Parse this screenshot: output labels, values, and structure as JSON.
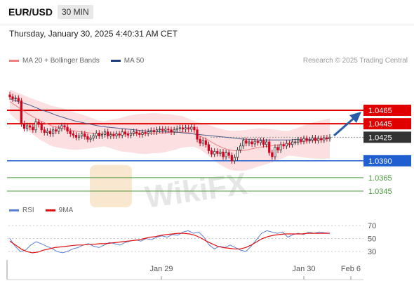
{
  "header": {
    "pair": "EUR/USD",
    "timeframe": "30 MIN",
    "datetime": "Thursday, January 30, 2025 4:40:31 AM CET"
  },
  "legend_main": [
    {
      "label": "MA 20 + Bollinger Bands",
      "color": "#f08080"
    },
    {
      "label": "MA 50",
      "color": "#1f3d7a"
    }
  ],
  "legend_rsi": [
    {
      "label": "RSI",
      "color": "#5b7fd4"
    },
    {
      "label": "9MA",
      "color": "#e01010"
    }
  ],
  "credit": "Research © 2025 Trading Central",
  "colors": {
    "resistance": "#e00000",
    "support": "#1f5fd0",
    "target": "#4a9a3a",
    "current": "#333333",
    "arrow": "#2a5da8",
    "candle_up": "#333333",
    "candle_down": "#d4001c"
  },
  "chart_data": {
    "type": "candlestick",
    "price_levels": [
      {
        "value": 1.0465,
        "label": "1.0465",
        "kind": "resistance"
      },
      {
        "value": 1.0445,
        "label": "1.0445",
        "kind": "resistance"
      },
      {
        "value": 1.0425,
        "label": "1.0425",
        "kind": "current"
      },
      {
        "value": 1.039,
        "label": "1.0390",
        "kind": "support"
      },
      {
        "value": 1.0365,
        "label": "1.0365",
        "kind": "target"
      },
      {
        "value": 1.0345,
        "label": "1.0345",
        "kind": "target"
      }
    ],
    "closes": [
      1.0485,
      1.0482,
      1.0483,
      1.0479,
      1.0445,
      1.0438,
      1.0442,
      1.044,
      1.0436,
      1.0448,
      1.0444,
      1.0436,
      1.0432,
      1.0434,
      1.043,
      1.0436,
      1.0434,
      1.0438,
      1.0442,
      1.044,
      1.0434,
      1.043,
      1.0428,
      1.0425,
      1.0427,
      1.043,
      1.0426,
      1.0422,
      1.0424,
      1.0427,
      1.0431,
      1.0427,
      1.0429,
      1.0433,
      1.0427,
      1.0429,
      1.0427,
      1.043,
      1.0428,
      1.0433,
      1.043,
      1.0428,
      1.0431,
      1.0433,
      1.0431,
      1.0429,
      1.0432,
      1.0431,
      1.0433,
      1.0435,
      1.0433,
      1.0436,
      1.0437,
      1.0435,
      1.0437,
      1.0436,
      1.0433,
      1.0436,
      1.0438,
      1.0439,
      1.0437,
      1.0439,
      1.0437,
      1.044,
      1.0436,
      1.0422,
      1.0416,
      1.042,
      1.0414,
      1.0405,
      1.04,
      1.0404,
      1.0401,
      1.0403,
      1.0396,
      1.0402,
      1.0398,
      1.039,
      1.0395,
      1.0406,
      1.0412,
      1.042,
      1.0416,
      1.0418,
      1.0415,
      1.0419,
      1.0417,
      1.042,
      1.0414,
      1.0418,
      1.0402,
      1.0396,
      1.041,
      1.0406,
      1.0414,
      1.0412,
      1.0416,
      1.0414,
      1.0418,
      1.0418,
      1.0421,
      1.0419,
      1.0423,
      1.042,
      1.0421,
      1.0424,
      1.042,
      1.0423,
      1.0421,
      1.0424,
      1.0423,
      1.0425
    ],
    "ma20": [
      1.0478,
      1.0472,
      1.0466,
      1.046,
      1.0455,
      1.045,
      1.0446,
      1.0442,
      1.044,
      1.0438,
      1.0436,
      1.0434,
      1.0433,
      1.0432,
      1.0431,
      1.043,
      1.043,
      1.043,
      1.0429,
      1.0429,
      1.043,
      1.043,
      1.043,
      1.043,
      1.0431,
      1.0431,
      1.0431,
      1.0432,
      1.0432,
      1.0433,
      1.0432,
      1.043,
      1.0427,
      1.0423,
      1.0418,
      1.0413,
      1.0409,
      1.0406,
      1.0405,
      1.0405,
      1.0406,
      1.0408,
      1.041,
      1.0411,
      1.0412,
      1.0413,
      1.0414,
      1.0416,
      1.0417,
      1.0418,
      1.0419,
      1.042,
      1.0421,
      1.0422,
      1.0423
    ],
    "ma50": [
      1.0482,
      1.0479,
      1.0476,
      1.0473,
      1.0469,
      1.0465,
      1.0462,
      1.0458,
      1.0455,
      1.0452,
      1.0449,
      1.0447,
      1.0445,
      1.0443,
      1.0441,
      1.044,
      1.0439,
      1.0438,
      1.0437,
      1.0436,
      1.0435,
      1.0434,
      1.0434,
      1.0433,
      1.0433,
      1.0433,
      1.0432,
      1.0431,
      1.043,
      1.0429,
      1.0428,
      1.0427,
      1.0426,
      1.0425,
      1.0424,
      1.0423,
      1.0422,
      1.0422,
      1.0421,
      1.0421,
      1.0421,
      1.0421,
      1.0421,
      1.0421,
      1.0422,
      1.0422,
      1.0422,
      1.0422,
      1.0423,
      1.0423
    ],
    "rsi": [
      50,
      38,
      30,
      32,
      40,
      45,
      42,
      38,
      35,
      30,
      28,
      30,
      34,
      36,
      40,
      42,
      38,
      36,
      40,
      44,
      42,
      40,
      44,
      46,
      48,
      46,
      50,
      48,
      52,
      54,
      52,
      56,
      55,
      60,
      62,
      58,
      60,
      52,
      40,
      34,
      38,
      36,
      40,
      36,
      32,
      30,
      38,
      48,
      58,
      62,
      60,
      58,
      60,
      52,
      56,
      58,
      56,
      60,
      58,
      60,
      59,
      58
    ],
    "rsi_ma": [
      46,
      40,
      34,
      30,
      28,
      29,
      32,
      34,
      36,
      37,
      38,
      39,
      40,
      40,
      41,
      41,
      42,
      42,
      43,
      44,
      45,
      46,
      47,
      48,
      50,
      52,
      53,
      55,
      56,
      57,
      58,
      58,
      57,
      55,
      51,
      46,
      42,
      38,
      36,
      35,
      34,
      34,
      36,
      40,
      45,
      50,
      53,
      55,
      56,
      57,
      57,
      57,
      57,
      58,
      58,
      58,
      58,
      58
    ],
    "rsi_axis_labels": [
      "70",
      "50",
      "30"
    ],
    "x_labels": [
      {
        "label": "Jan 29",
        "pos": 0.0
      },
      {
        "label": "Jan 30",
        "pos": 0.0
      },
      {
        "label": "Feb 6",
        "pos": 0.0
      }
    ]
  }
}
